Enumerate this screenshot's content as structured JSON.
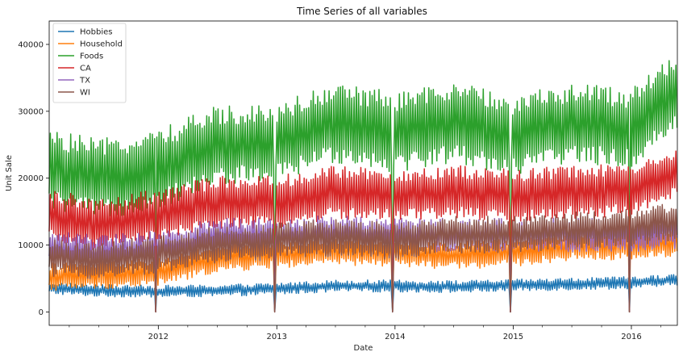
{
  "chart_data": {
    "type": "line",
    "title": "Time Series of all variables",
    "xlabel": "Date",
    "ylabel": "Unit Sale",
    "xlim": [
      "2011-01-29",
      "2016-05-22"
    ],
    "ylim": [
      -2000,
      43500
    ],
    "x_ticks": [
      "2012",
      "2013",
      "2014",
      "2015",
      "2016"
    ],
    "y_ticks": [
      0,
      10000,
      20000,
      30000,
      40000
    ],
    "legend_position": "top-left",
    "grid": false,
    "frequency": "daily (shown as approximate weekly sample: weekday low / weekend high)",
    "christmas_zero_dates": [
      "2011-12-25",
      "2012-12-25",
      "2013-12-25",
      "2014-12-25",
      "2015-12-25"
    ],
    "series": [
      {
        "name": "Hobbies",
        "color": "#1f77b4",
        "trend_points": [
          [
            "2011-01-29",
            3400
          ],
          [
            "2011-07-01",
            3000
          ],
          [
            "2012-01-01",
            2900
          ],
          [
            "2012-07-01",
            3000
          ],
          [
            "2013-01-01",
            3300
          ],
          [
            "2013-07-01",
            3700
          ],
          [
            "2014-01-01",
            3700
          ],
          [
            "2014-07-01",
            3600
          ],
          [
            "2015-01-01",
            3800
          ],
          [
            "2015-07-01",
            4000
          ],
          [
            "2016-01-01",
            4200
          ],
          [
            "2016-05-22",
            4600
          ]
        ],
        "weekly_amplitude": 1200,
        "noise": 300
      },
      {
        "name": "Household",
        "color": "#ff7f0e",
        "trend_points": [
          [
            "2011-01-29",
            4800
          ],
          [
            "2011-07-01",
            5000
          ],
          [
            "2012-01-01",
            5500
          ],
          [
            "2012-07-01",
            7500
          ],
          [
            "2013-01-01",
            8200
          ],
          [
            "2013-07-01",
            8600
          ],
          [
            "2014-01-01",
            8400
          ],
          [
            "2014-07-01",
            8000
          ],
          [
            "2015-01-01",
            8400
          ],
          [
            "2015-07-01",
            9400
          ],
          [
            "2016-01-01",
            9400
          ],
          [
            "2016-05-22",
            10000
          ]
        ],
        "weekly_amplitude": 3000,
        "noise": 600
      },
      {
        "name": "Foods",
        "color": "#2ca02c",
        "trend_points": [
          [
            "2011-01-29",
            20000
          ],
          [
            "2011-07-01",
            18500
          ],
          [
            "2012-01-01",
            20000
          ],
          [
            "2012-07-01",
            23500
          ],
          [
            "2013-01-01",
            24000
          ],
          [
            "2013-07-01",
            27000
          ],
          [
            "2014-01-01",
            25500
          ],
          [
            "2014-07-01",
            27000
          ],
          [
            "2015-01-01",
            25000
          ],
          [
            "2015-07-01",
            27000
          ],
          [
            "2016-01-01",
            26000
          ],
          [
            "2016-05-22",
            32000
          ]
        ],
        "weekly_amplitude": 9000,
        "noise": 1500
      },
      {
        "name": "CA",
        "color": "#d62728",
        "trend_points": [
          [
            "2011-01-29",
            13500
          ],
          [
            "2011-07-01",
            12000
          ],
          [
            "2012-01-01",
            13500
          ],
          [
            "2012-07-01",
            15500
          ],
          [
            "2013-01-01",
            15500
          ],
          [
            "2013-07-01",
            17000
          ],
          [
            "2014-01-01",
            16500
          ],
          [
            "2014-07-01",
            17000
          ],
          [
            "2015-01-01",
            16500
          ],
          [
            "2015-07-01",
            17000
          ],
          [
            "2016-01-01",
            17500
          ],
          [
            "2016-05-22",
            20000
          ]
        ],
        "weekly_amplitude": 6000,
        "noise": 1000
      },
      {
        "name": "TX",
        "color": "#9467bd",
        "trend_points": [
          [
            "2011-01-29",
            9000
          ],
          [
            "2011-07-01",
            8500
          ],
          [
            "2012-01-01",
            9000
          ],
          [
            "2012-07-01",
            11000
          ],
          [
            "2013-01-01",
            11000
          ],
          [
            "2013-07-01",
            11500
          ],
          [
            "2014-01-01",
            11000
          ],
          [
            "2014-07-01",
            11000
          ],
          [
            "2015-01-01",
            11000
          ],
          [
            "2015-07-01",
            11000
          ],
          [
            "2016-01-01",
            11000
          ],
          [
            "2016-05-22",
            11500
          ]
        ],
        "weekly_amplitude": 3500,
        "noise": 800
      },
      {
        "name": "WI",
        "color": "#8c564b",
        "trend_points": [
          [
            "2011-01-29",
            7500
          ],
          [
            "2011-07-01",
            7000
          ],
          [
            "2012-01-01",
            8000
          ],
          [
            "2012-07-01",
            9500
          ],
          [
            "2013-01-01",
            10000
          ],
          [
            "2013-07-01",
            10500
          ],
          [
            "2014-01-01",
            10000
          ],
          [
            "2014-07-01",
            11000
          ],
          [
            "2015-01-01",
            11000
          ],
          [
            "2015-07-01",
            11500
          ],
          [
            "2016-01-01",
            12000
          ],
          [
            "2016-05-22",
            13000
          ]
        ],
        "weekly_amplitude": 4000,
        "noise": 800
      }
    ]
  }
}
